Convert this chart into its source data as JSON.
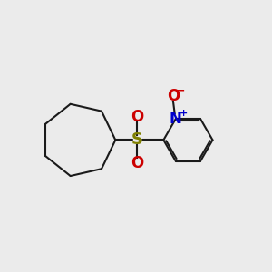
{
  "background_color": "#ebebeb",
  "bond_color": "#1a1a1a",
  "sulfur_color": "#808000",
  "oxygen_color": "#cc0000",
  "nitrogen_color": "#0000cc",
  "figsize": [
    3.0,
    3.0
  ],
  "dpi": 100,
  "xlim": [
    0,
    10
  ],
  "ylim": [
    0,
    10
  ]
}
